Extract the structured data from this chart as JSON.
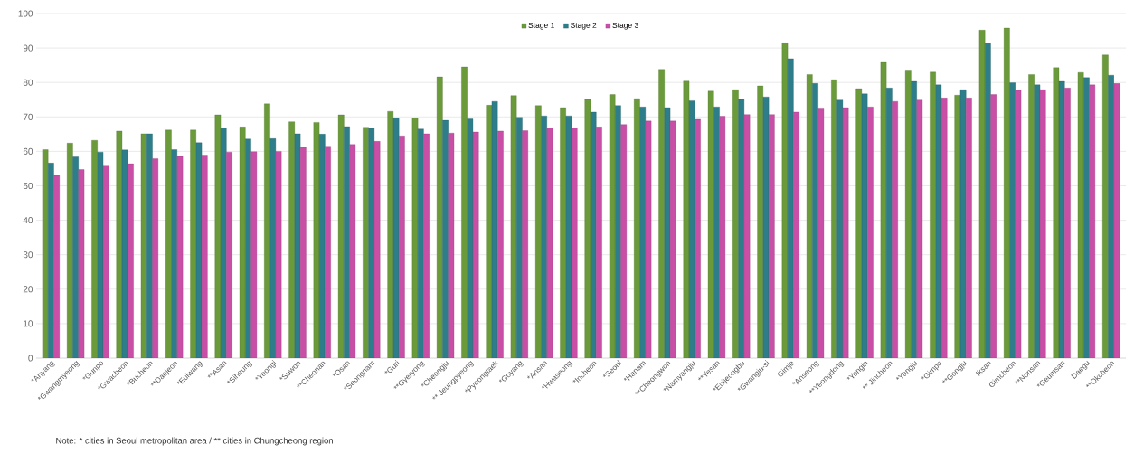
{
  "chart_data": {
    "type": "bar",
    "categories": [
      "*Anyang",
      "*Gwangmyeong",
      "*Gunpo",
      "*Gwacheon",
      "*Bucheon",
      "**Daejeon",
      "*Euiwang",
      "**Asan",
      "*Siheung",
      "*Yeongi",
      "*Suwon",
      "**Cheonan",
      "*Osan",
      "*Seongnam",
      "*Guri",
      "**Gyeryong",
      "*Cheongju",
      "** Jeungpyeong",
      "*Pyeongtaek",
      "*Goyang",
      "*Ansan",
      "*Hwaseong",
      "*Incheon",
      "*Seoul",
      "*Hanam",
      "**Cheongwon",
      "*Namyangju",
      "**Yesan",
      "*Euijeongbu",
      "*Gwangju-si",
      "Gimje",
      "*Anseong",
      "**Yeongdong",
      "*Yongin",
      "** Jincheon",
      "*Yangju",
      "*Gimpo",
      "**Gongju",
      "Iksan",
      "Gimcheon",
      "**Nonsan",
      "*Geumsan",
      "Daegu",
      "**Okcheon"
    ],
    "series": [
      {
        "name": "Stage 1",
        "color": "#6a9a3a",
        "values": [
          60.5,
          62.4,
          63.2,
          65.9,
          65.1,
          66.2,
          66.2,
          70.6,
          67.1,
          73.8,
          68.6,
          68.4,
          70.6,
          67.0,
          71.6,
          69.7,
          81.6,
          84.5,
          73.4,
          76.2,
          73.3,
          72.7,
          75.1,
          76.5,
          75.3,
          83.8,
          80.4,
          77.5,
          77.9,
          79.0,
          91.5,
          82.3,
          80.8,
          78.2,
          85.8,
          83.6,
          83.0,
          76.3,
          95.2,
          95.8,
          82.3,
          84.3,
          82.9,
          88.0
        ]
      },
      {
        "name": "Stage 2",
        "color": "#2e7d8a",
        "values": [
          56.6,
          58.4,
          59.8,
          60.4,
          65.1,
          60.5,
          62.5,
          66.8,
          63.6,
          63.7,
          65.1,
          65.0,
          67.2,
          66.7,
          69.7,
          66.5,
          69.0,
          69.4,
          74.5,
          69.9,
          70.3,
          70.3,
          71.4,
          73.3,
          72.9,
          72.7,
          74.7,
          72.9,
          75.1,
          75.8,
          86.9,
          79.7,
          74.9,
          76.7,
          78.4,
          80.3,
          79.3,
          77.9,
          91.5,
          79.9,
          79.3,
          80.3,
          81.4,
          82.1
        ]
      },
      {
        "name": "Stage 3",
        "color": "#c94fa6",
        "values": [
          53.0,
          54.7,
          56.0,
          56.4,
          57.9,
          58.5,
          58.9,
          59.8,
          59.9,
          60.0,
          61.2,
          61.5,
          62.0,
          62.9,
          64.5,
          65.1,
          65.3,
          65.6,
          65.9,
          66.0,
          66.8,
          66.8,
          67.1,
          67.8,
          68.8,
          68.8,
          69.3,
          70.2,
          70.7,
          70.7,
          71.4,
          72.6,
          72.7,
          72.9,
          74.5,
          74.9,
          75.5,
          75.5,
          76.5,
          77.7,
          77.9,
          78.4,
          79.3,
          79.7
        ]
      }
    ],
    "ylim": [
      0,
      100
    ],
    "yticks": [
      0,
      10,
      20,
      30,
      40,
      50,
      60,
      70,
      80,
      90,
      100
    ],
    "grid": "y",
    "legend": "top",
    "annotations": [
      "Note: *  cities in Seoul metropolitan area / ** cities in Chungcheong region"
    ]
  }
}
